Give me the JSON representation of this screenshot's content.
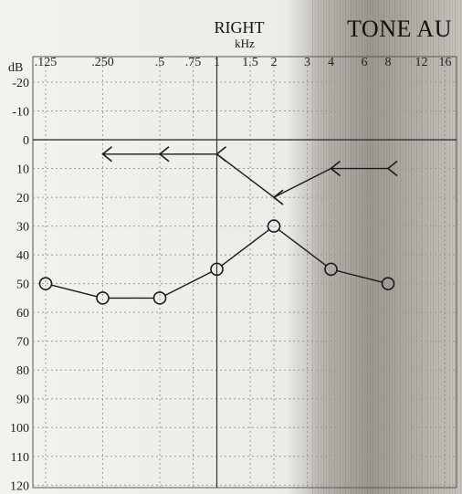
{
  "chart_data": {
    "type": "line",
    "title": "RIGHT",
    "header_text": "TONE AU",
    "x_unit_label": "kHz",
    "y_unit_label": "dB",
    "x_ticks": [
      {
        "label": ".125",
        "value": 0.125
      },
      {
        "label": ".250",
        "value": 0.25
      },
      {
        "label": ".5",
        "value": 0.5
      },
      {
        "label": ".75",
        "value": 0.75
      },
      {
        "label": "1",
        "value": 1
      },
      {
        "label": "1.5",
        "value": 1.5
      },
      {
        "label": "2",
        "value": 2
      },
      {
        "label": "3",
        "value": 3
      },
      {
        "label": "4",
        "value": 4
      },
      {
        "label": "6",
        "value": 6
      },
      {
        "label": "8",
        "value": 8
      },
      {
        "label": "12",
        "value": 12
      },
      {
        "label": "16",
        "value": 16
      }
    ],
    "y_ticks": [
      -20,
      -10,
      0,
      10,
      20,
      30,
      40,
      50,
      60,
      70,
      80,
      90,
      100,
      110,
      120
    ],
    "ylim": [
      -20,
      120
    ],
    "y_inverted": true,
    "x_scale": "log2",
    "grid": true,
    "reference_line_y": 0,
    "series": [
      {
        "marker": "circle",
        "color": "#1a1a1a",
        "points": [
          {
            "x": 0.125,
            "y": 50
          },
          {
            "x": 0.25,
            "y": 55
          },
          {
            "x": 0.5,
            "y": 55
          },
          {
            "x": 1,
            "y": 45
          },
          {
            "x": 2,
            "y": 30
          },
          {
            "x": 4,
            "y": 45
          },
          {
            "x": 8,
            "y": 50
          }
        ]
      },
      {
        "marker": "left-angle",
        "color": "#1a1a1a",
        "points": [
          {
            "x": 0.25,
            "y": 5
          },
          {
            "x": 0.5,
            "y": 5
          },
          {
            "x": 1,
            "y": 5
          },
          {
            "x": 2,
            "y": 20
          },
          {
            "x": 4,
            "y": 10
          },
          {
            "x": 8,
            "y": 10
          }
        ]
      }
    ],
    "colors": {
      "paper": "#f2f0ec",
      "grid": "#9a9a9a",
      "ink": "#1a1a1a",
      "shade": "#7c7770"
    }
  }
}
